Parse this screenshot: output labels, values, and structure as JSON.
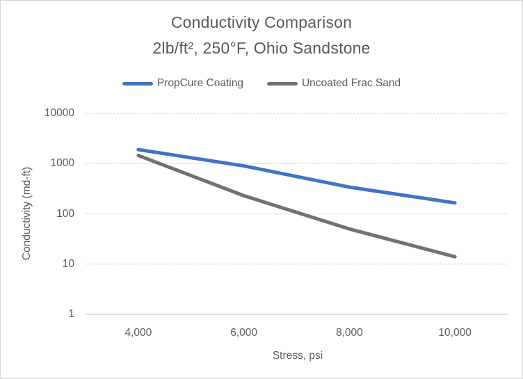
{
  "colors": {
    "background": "#ffffff",
    "frame_border": "#d4d4d4",
    "text": "#595959",
    "gridline": "#d9d9d9",
    "axis_line": "#c8c6c6",
    "series_blue": "#4472c4",
    "series_gray": "#747070"
  },
  "chart_data": {
    "type": "line",
    "title": "Conductivity Comparison",
    "subtitle": "2lb/ft², 250°F, Ohio Sandstone",
    "xlabel": "Stress, psi",
    "ylabel": "Conductivity (md-ft)",
    "x": [
      4000,
      6000,
      8000,
      10000
    ],
    "x_tick_labels": [
      "4,000",
      "6,000",
      "8,000",
      "10,000"
    ],
    "y_scale": "log",
    "y_ticks": [
      1,
      10,
      100,
      1000,
      10000
    ],
    "y_tick_labels": [
      "1",
      "10",
      "100",
      "1000",
      "10000"
    ],
    "xlim": [
      3000,
      11000
    ],
    "ylim": [
      1,
      10000
    ],
    "grid": "horizontal-dashed",
    "legend_position": "top-center",
    "series": [
      {
        "name": "PropCure Coating",
        "color": "#4472c4",
        "values": [
          1900,
          900,
          340,
          165
        ]
      },
      {
        "name": "Uncoated Frac Sand",
        "color": "#747070",
        "values": [
          1450,
          230,
          50,
          14
        ]
      }
    ]
  }
}
